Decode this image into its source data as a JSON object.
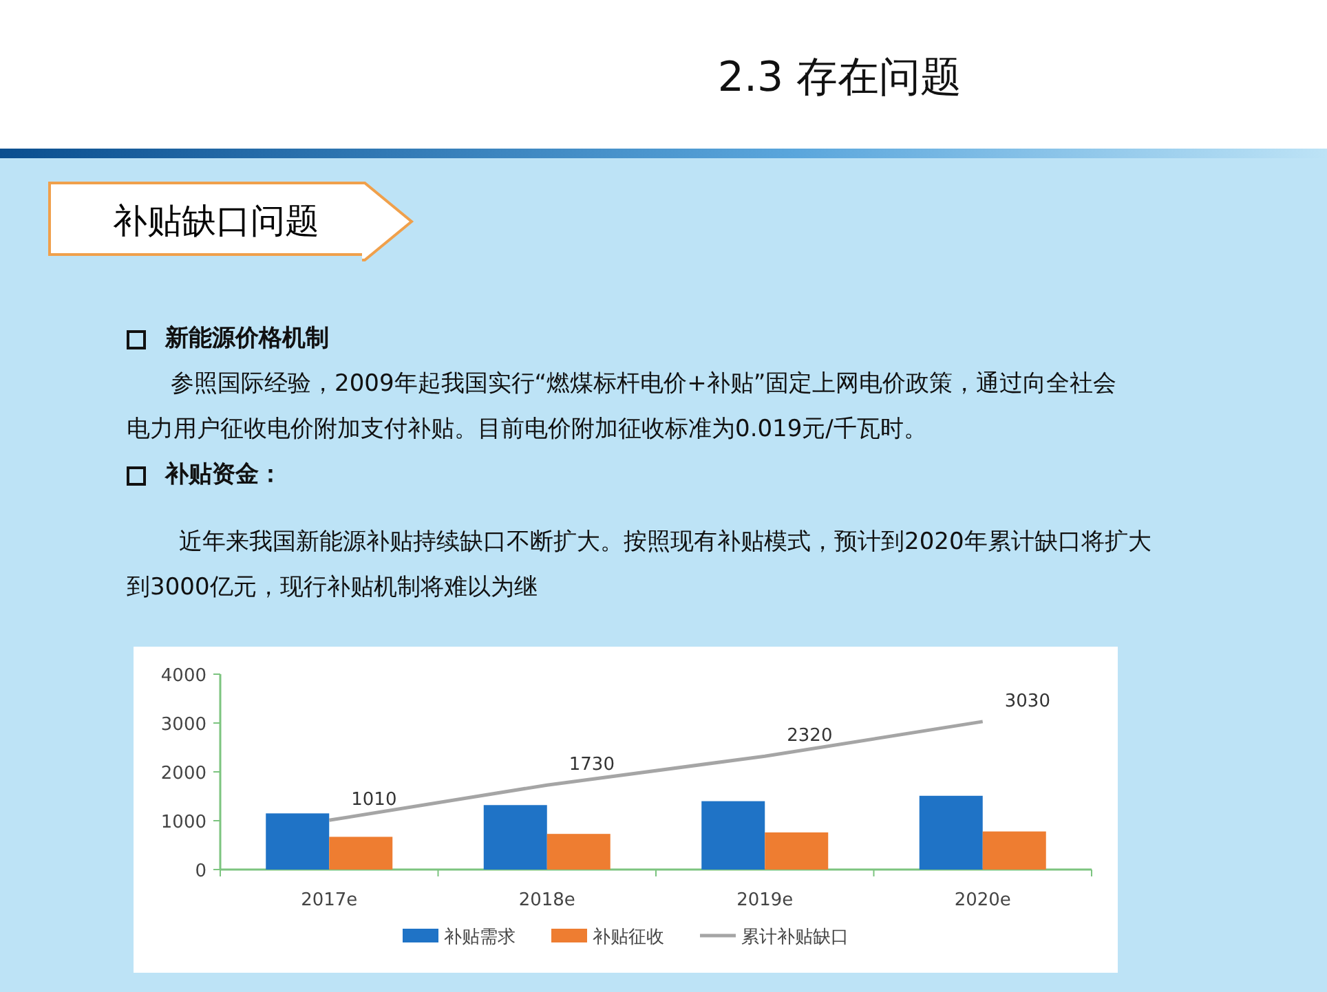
{
  "chart_data": {
    "type": "bar",
    "title": "2.3 存在问题",
    "subtitle": "补贴缺口问题",
    "annotations": [
      "新能源价格机制",
      "参照国际经验，2009年起我国实行“燃煤标杆电价+补贴”固定上网电价政策，通过向全社会电力用户征收电价附加支付补贴。目前电价附加征收标准为0.019元/千瓦时。",
      "补贴资金：",
      "近年来我国新能源补贴持续缺口不断扩大。按照现有补贴模式，预计到2020年累计缺口将扩大到3000亿元，现行补贴机制将难以为继"
    ],
    "categories": [
      "2017e",
      "2018e",
      "2019e",
      "2020e"
    ],
    "series": [
      {
        "name": "补贴需求",
        "color": "#1f73c6",
        "values": [
          1150,
          1320,
          1400,
          1510
        ]
      },
      {
        "name": "补贴征收",
        "color": "#ee7d31",
        "values": [
          670,
          730,
          760,
          780
        ]
      },
      {
        "name": "累计补贴缺口",
        "type": "line",
        "color": "#a5a5a5",
        "values": [
          1010,
          1730,
          2320,
          3030
        ],
        "value_labels": [
          "1010",
          "1730",
          "2320",
          "3030"
        ]
      }
    ],
    "ylim": [
      0,
      4000
    ],
    "yticks": [
      0,
      1000,
      2000,
      3000,
      4000
    ],
    "grid": false,
    "legend": "bottom",
    "marker": "none"
  }
}
